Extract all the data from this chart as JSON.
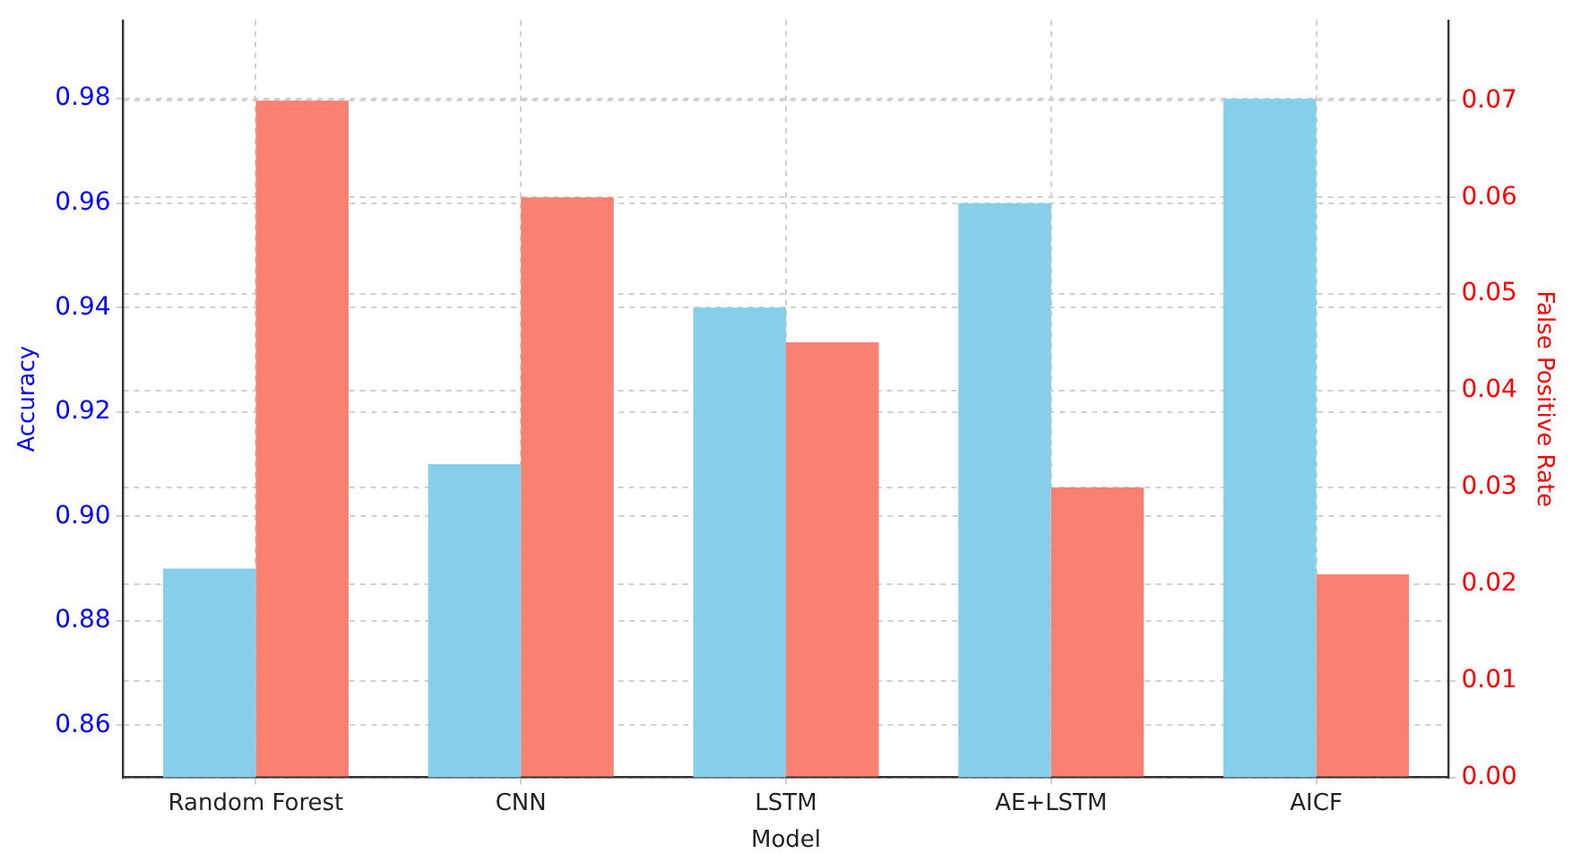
{
  "chart_data": {
    "type": "bar",
    "xlabel": "Model",
    "ylabel": "Accuracy",
    "y2label": "False Positive Rate",
    "categories": [
      "Random Forest",
      "CNN",
      "LSTM",
      "AE+LSTM",
      "AICF"
    ],
    "series": [
      {
        "color": "#87ceeb",
        "values": [
          0.89,
          0.91,
          0.94,
          0.96,
          0.98
        ]
      },
      {
        "color": "#fa8072",
        "axis": "y2",
        "values": [
          0.07,
          0.06,
          0.045,
          0.03,
          0.021
        ]
      }
    ],
    "ylim": [
      0.85,
      0.995
    ],
    "yticks": [
      0.86,
      0.88,
      {
        "value": 0.9,
        "label": "0.90"
      },
      0.92,
      0.94,
      0.96,
      0.98
    ],
    "y2lim": [
      0,
      0.0783
    ],
    "y2ticks": [
      {
        "value": 0,
        "label": "0.00"
      },
      0.01,
      0.02,
      0.03,
      0.04,
      0.05,
      0.06,
      0.07
    ],
    "grid": true
  }
}
